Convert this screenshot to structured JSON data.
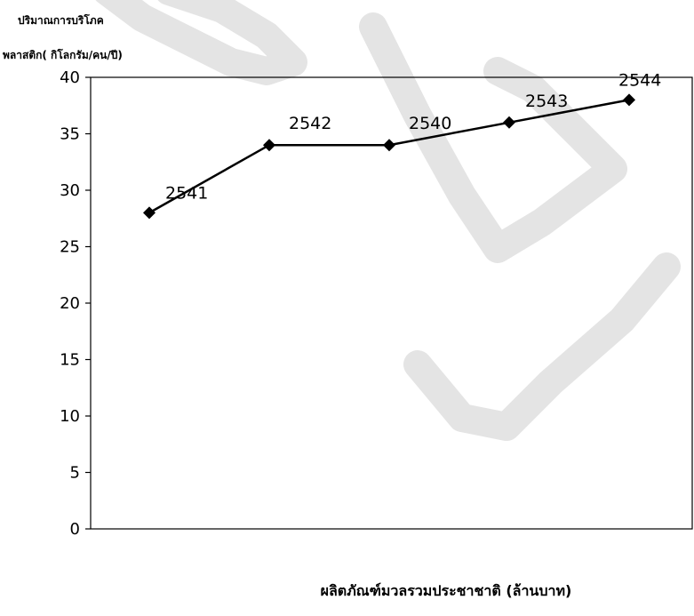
{
  "chart_data": {
    "type": "line",
    "ylabel_line1": "ปริมาณการบริโภค",
    "ylabel_line2": "พลาสติก( กิโลกรัม/คน/ปี)",
    "xlabel": "ผลิตภัณฑ์มวลรวมประชาชาติ (ล้านบาท)",
    "ylim": [
      0,
      40
    ],
    "yticks": [
      "0",
      "5",
      "10",
      "15",
      "20",
      "25",
      "30",
      "35",
      "40"
    ],
    "grid": false,
    "series": [
      {
        "values": [
          28,
          34,
          34,
          36,
          38
        ],
        "point_labels": [
          "2541",
          "2542",
          "2540",
          "2543",
          "2544"
        ]
      }
    ]
  },
  "colors": {
    "line": "#000000",
    "watermark": "#e6e6e6"
  }
}
